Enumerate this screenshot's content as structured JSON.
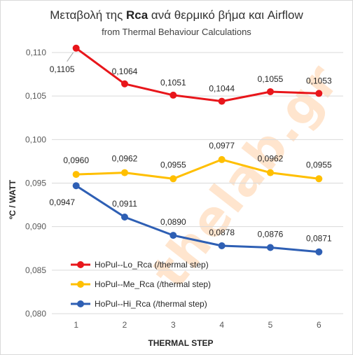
{
  "chart_data": {
    "type": "line",
    "title_parts": {
      "before": "Μεταβολή της ",
      "bold": "Rca",
      "after": " ανά θερμικό βήμα και  Airflow"
    },
    "subtitle": "from Thermal Behaviour Calculations",
    "xlabel": "THERMAL  STEP",
    "ylabel": "ºC / WATT",
    "categories": [
      "1",
      "2",
      "3",
      "4",
      "5",
      "6"
    ],
    "ylim": [
      0.08,
      0.11
    ],
    "yticks": [
      "0,080",
      "0,085",
      "0,090",
      "0,095",
      "0,100",
      "0,105",
      "0,110"
    ],
    "grid": true,
    "legend_position": "lower-left",
    "series": [
      {
        "name": "HoPul--Lo_Rca (/thermal step)",
        "color": "#e8161b",
        "values": [
          0.1105,
          0.1064,
          0.1051,
          0.1044,
          0.1055,
          0.1053
        ],
        "labels": [
          "0,1105",
          "0,1064",
          "0,1051",
          "0,1044",
          "0,1055",
          "0,1053"
        ]
      },
      {
        "name": "HoPul--Me_Rca (/thermal step)",
        "color": "#ffbf00",
        "values": [
          0.096,
          0.0962,
          0.0955,
          0.0977,
          0.0962,
          0.0955
        ],
        "labels": [
          "0,0960",
          "0,0962",
          "0,0955",
          "0,0977",
          "0,0962",
          "0,0955"
        ]
      },
      {
        "name": "HoPul--Hi_Rca (/thermal step)",
        "color": "#2e5fb4",
        "values": [
          0.0947,
          0.0911,
          0.089,
          0.0878,
          0.0876,
          0.0871
        ],
        "labels": [
          "0,0947",
          "0,0911",
          "0,0890",
          "0,0878",
          "0,0876",
          "0,0871"
        ]
      }
    ]
  },
  "watermark": "thelab.gr"
}
